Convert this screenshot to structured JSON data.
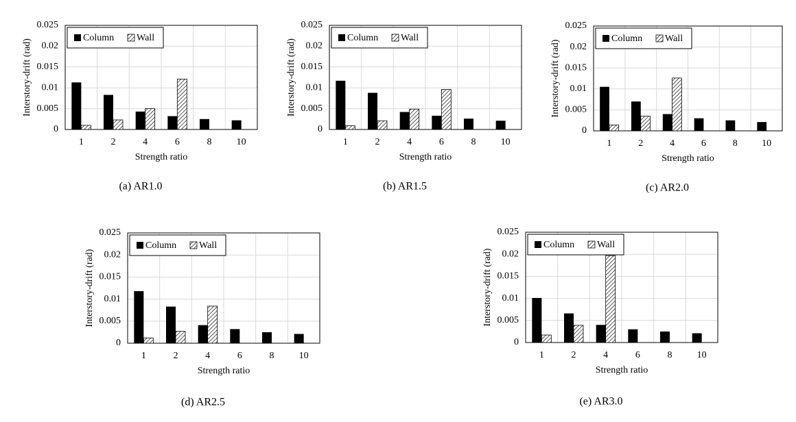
{
  "chart_data": [
    {
      "type": "bar",
      "caption": "(a) AR1.0",
      "x_label": "Strength ratio",
      "y_label": "Interstory-drift  (rad)",
      "categories": [
        "1",
        "2",
        "4",
        "6",
        "8",
        "10"
      ],
      "series": [
        {
          "name": "Column",
          "color": "#000000",
          "values": [
            0.0113,
            0.0083,
            0.0043,
            0.0032,
            0.0025,
            0.0022
          ]
        },
        {
          "name": "Wall",
          "color": "#000000",
          "hatch": true,
          "values": [
            0.001,
            0.0023,
            0.005,
            0.0121,
            null,
            null
          ]
        }
      ],
      "ylim": [
        0,
        0.025
      ],
      "yticks": [
        0,
        0.005,
        0.01,
        0.015,
        0.02,
        0.025
      ],
      "grid": true,
      "legend": "top-left"
    },
    {
      "type": "bar",
      "caption": "(b) AR1.5",
      "x_label": "Strength ratio",
      "y_label": "Interstory-drift  (rad)",
      "categories": [
        "1",
        "2",
        "4",
        "6",
        "8",
        "10"
      ],
      "series": [
        {
          "name": "Column",
          "color": "#000000",
          "values": [
            0.0117,
            0.0088,
            0.0042,
            0.0033,
            0.0026,
            0.0021
          ]
        },
        {
          "name": "Wall",
          "color": "#000000",
          "hatch": true,
          "values": [
            0.0009,
            0.0021,
            0.0049,
            0.0096,
            null,
            null
          ]
        }
      ],
      "ylim": [
        0,
        0.025
      ],
      "yticks": [
        0,
        0.005,
        0.01,
        0.015,
        0.02,
        0.025
      ],
      "grid": true,
      "legend": "top-left"
    },
    {
      "type": "bar",
      "caption": "(c) AR2.0",
      "x_label": "Strength ratio",
      "y_label": "Interstory-drift  (rad)",
      "categories": [
        "1",
        "2",
        "4",
        "6",
        "8",
        "10"
      ],
      "series": [
        {
          "name": "Column",
          "color": "#000000",
          "values": [
            0.0105,
            0.007,
            0.004,
            0.003,
            0.0025,
            0.0021
          ]
        },
        {
          "name": "Wall",
          "color": "#000000",
          "hatch": true,
          "values": [
            0.0014,
            0.0035,
            0.0126,
            null,
            null,
            null
          ]
        }
      ],
      "ylim": [
        0,
        0.025
      ],
      "yticks": [
        0,
        0.005,
        0.01,
        0.015,
        0.02,
        0.025
      ],
      "grid": true,
      "legend": "top-left"
    },
    {
      "type": "bar",
      "caption": "(d) AR2.5",
      "x_label": "Strength ratio",
      "y_label": "Interstory-drift  (rad)",
      "categories": [
        "1",
        "2",
        "4",
        "6",
        "8",
        "10"
      ],
      "series": [
        {
          "name": "Column",
          "color": "#000000",
          "values": [
            0.0118,
            0.0083,
            0.0041,
            0.0032,
            0.0025,
            0.0021
          ]
        },
        {
          "name": "Wall",
          "color": "#000000",
          "hatch": true,
          "values": [
            0.0012,
            0.0027,
            0.0084,
            null,
            null,
            null
          ]
        }
      ],
      "ylim": [
        0,
        0.025
      ],
      "yticks": [
        0,
        0.005,
        0.01,
        0.015,
        0.02,
        0.025
      ],
      "grid": true,
      "legend": "top-left"
    },
    {
      "type": "bar",
      "caption": "(e) AR3.0",
      "x_label": "Strength ratio",
      "y_label": "Interstory-drift  (rad)",
      "categories": [
        "1",
        "2",
        "4",
        "6",
        "8",
        "10"
      ],
      "series": [
        {
          "name": "Column",
          "color": "#000000",
          "values": [
            0.0101,
            0.0066,
            0.004,
            0.003,
            0.0025,
            0.0021
          ]
        },
        {
          "name": "Wall",
          "color": "#000000",
          "hatch": true,
          "values": [
            0.0017,
            0.0039,
            0.0197,
            null,
            null,
            null
          ]
        }
      ],
      "ylim": [
        0,
        0.025
      ],
      "yticks": [
        0,
        0.005,
        0.01,
        0.015,
        0.02,
        0.025
      ],
      "grid": true,
      "legend": "top-left"
    }
  ]
}
